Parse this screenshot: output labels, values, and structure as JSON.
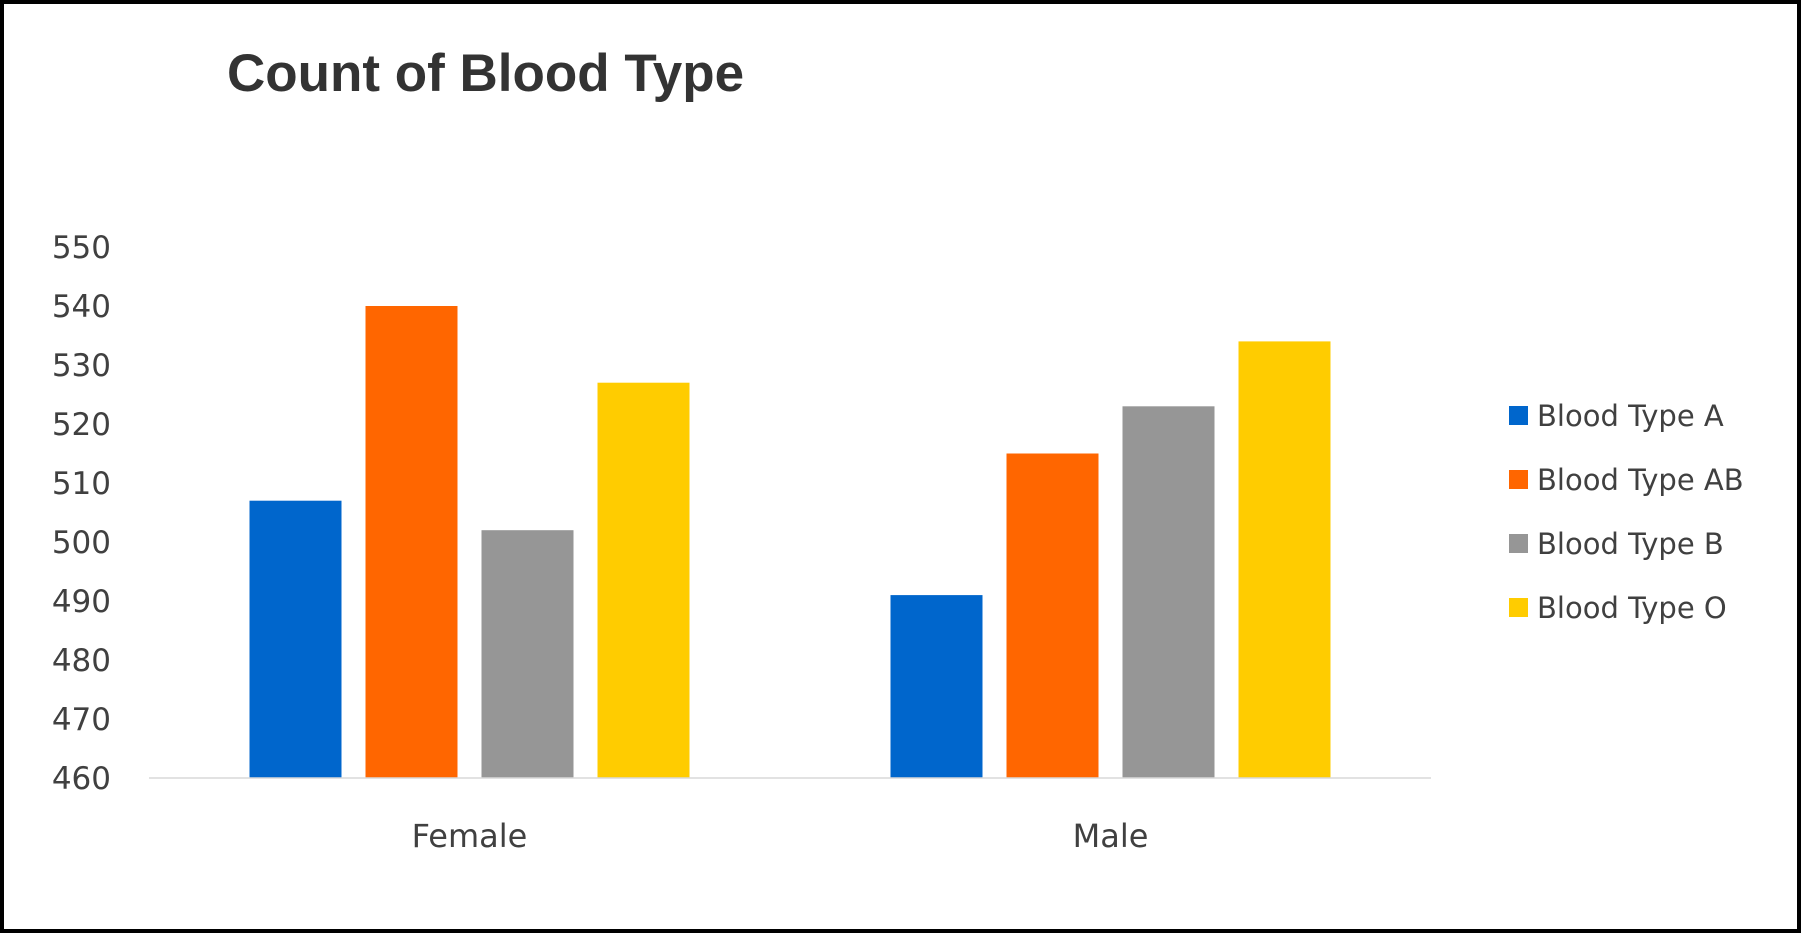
{
  "chart_data": {
    "type": "bar",
    "title": "Count of Blood Type",
    "xlabel": "",
    "ylabel": "",
    "categories": [
      "Female",
      "Male"
    ],
    "series": [
      {
        "name": "Blood Type A",
        "values": [
          507,
          491
        ],
        "color": "#0066CC"
      },
      {
        "name": "Blood Type AB",
        "values": [
          540,
          515
        ],
        "color": "#FF6600"
      },
      {
        "name": "Blood Type B",
        "values": [
          502,
          523
        ],
        "color": "#969696"
      },
      {
        "name": "Blood Type O",
        "values": [
          527,
          534
        ],
        "color": "#FFCC00"
      }
    ],
    "ylim": [
      460,
      550
    ],
    "yticks": [
      460,
      470,
      480,
      490,
      500,
      510,
      520,
      530,
      540,
      550
    ],
    "grid": false,
    "legend_position": "right"
  }
}
